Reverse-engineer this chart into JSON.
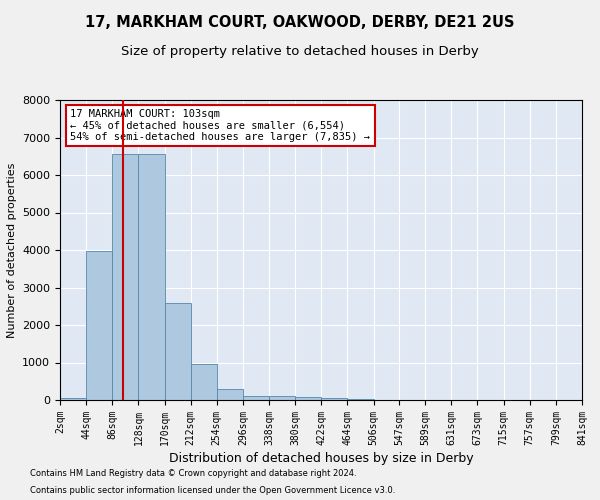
{
  "title1": "17, MARKHAM COURT, OAKWOOD, DERBY, DE21 2US",
  "title2": "Size of property relative to detached houses in Derby",
  "xlabel": "Distribution of detached houses by size in Derby",
  "ylabel": "Number of detached properties",
  "property_size": 103,
  "annotation_line1": "17 MARKHAM COURT: 103sqm",
  "annotation_line2": "← 45% of detached houses are smaller (6,554)",
  "annotation_line3": "54% of semi-detached houses are larger (7,835) →",
  "footer1": "Contains HM Land Registry data © Crown copyright and database right 2024.",
  "footer2": "Contains public sector information licensed under the Open Government Licence v3.0.",
  "bin_edges": [
    2,
    44,
    86,
    128,
    170,
    212,
    254,
    296,
    338,
    380,
    422,
    464,
    506,
    547,
    589,
    631,
    673,
    715,
    757,
    799,
    841
  ],
  "bar_heights": [
    50,
    3980,
    6550,
    6550,
    2600,
    960,
    300,
    120,
    100,
    80,
    50,
    20,
    10,
    5,
    3,
    2,
    1,
    1,
    1,
    1
  ],
  "bar_color": "#aec8e0",
  "bar_edge_color": "#5588aa",
  "red_line_x": 103,
  "red_line_color": "#cc0000",
  "annotation_box_color": "#cc0000",
  "ylim": [
    0,
    8000
  ],
  "background_color": "#e0e8f4",
  "grid_color": "#ffffff",
  "fig_facecolor": "#f0f0f0",
  "title1_fontsize": 10.5,
  "title2_fontsize": 9.5,
  "ylabel_fontsize": 8,
  "xlabel_fontsize": 9,
  "tick_fontsize": 7,
  "ytick_fontsize": 8,
  "ann_fontsize": 7.5,
  "footer_fontsize": 6
}
